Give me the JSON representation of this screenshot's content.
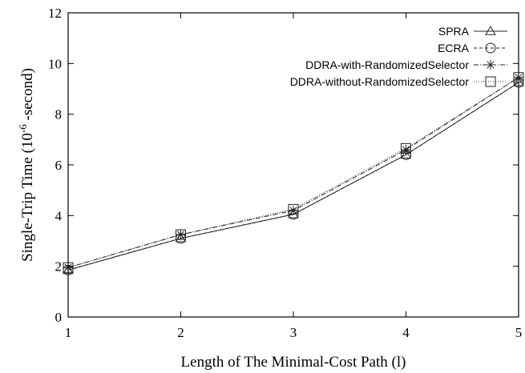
{
  "chart_data": {
    "type": "line",
    "title": "",
    "xlabel": "Length of The Minimal-Cost Path (l)",
    "ylabel": {
      "prefix": "Single-Trip Time (10",
      "superscript": "-6",
      "suffix": " -second)"
    },
    "x": [
      1,
      2,
      3,
      4,
      5
    ],
    "xlim": [
      1,
      5
    ],
    "ylim": [
      0,
      12
    ],
    "x_ticks": [
      1,
      2,
      3,
      4,
      5
    ],
    "y_ticks": [
      0,
      2,
      4,
      6,
      8,
      10,
      12
    ],
    "grid": false,
    "legend_position": "top-right",
    "series": [
      {
        "name": "SPRA",
        "values": [
          1.85,
          3.1,
          4.05,
          6.4,
          9.25
        ],
        "marker": "triangle",
        "dash": "solid"
      },
      {
        "name": "ECRA",
        "values": [
          1.85,
          3.1,
          4.05,
          6.4,
          9.25
        ],
        "marker": "circle",
        "dash": "dashed"
      },
      {
        "name": "DDRA-with-RandomizedSelector",
        "values": [
          1.95,
          3.25,
          4.2,
          6.6,
          9.45
        ],
        "marker": "star",
        "dash": "dashdot"
      },
      {
        "name": "DDRA-without-RandomizedSelector",
        "values": [
          1.95,
          3.25,
          4.25,
          6.65,
          9.45
        ],
        "marker": "square",
        "dash": "dotted"
      }
    ]
  }
}
